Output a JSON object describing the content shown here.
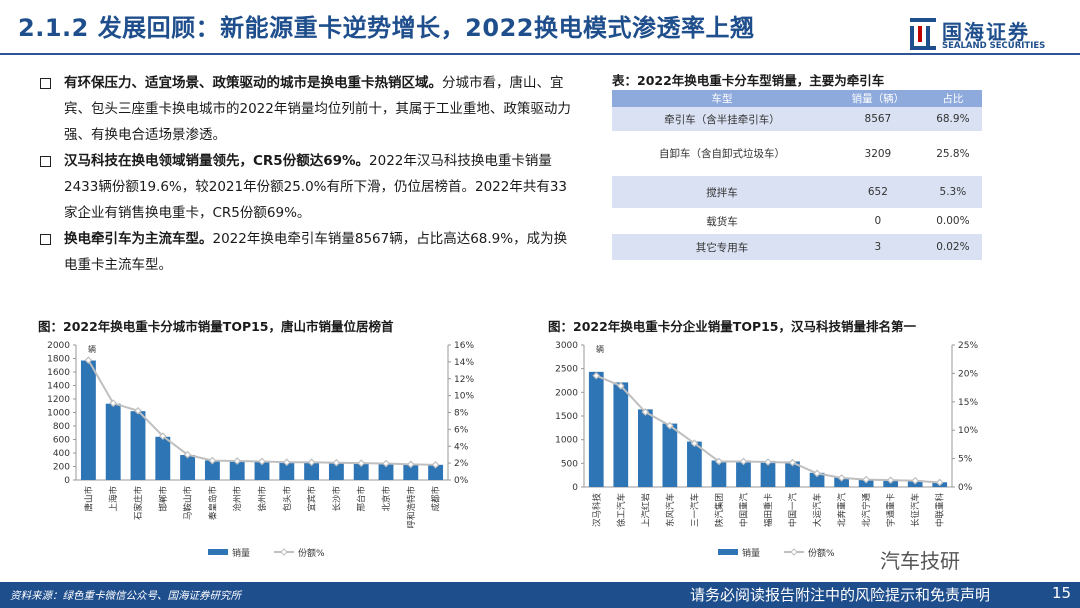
{
  "header": {
    "title": "2.1.2 发展回顾：新能源重卡逆势增长，2022换电模式渗透率上翘",
    "logo_cn": "国海证券",
    "logo_en": "SEALAND SECURITIES"
  },
  "bullets": [
    {
      "bold": "有环保压力、适宜场景、政策驱动的城市是换电重卡热销区域。",
      "text": "分城市看，唐山、宜宾、包头三座重卡换电城市的2022年销量均位列前十，其属于工业重地、政策驱动力强、有换电合适场景渗透。"
    },
    {
      "bold": "汉马科技在换电领域销量领先，CR5份额达69%。",
      "text": "2022年汉马科技换电重卡销量2433辆份额19.6%，较2021年份额25.0%有所下滑，仍位居榜首。2022年共有33家企业有销售换电重卡，CR5份额69%。"
    },
    {
      "bold": "换电牵引车为主流车型。",
      "text": "2022年换电牵引车销量8567辆，占比高达68.9%，成为换电重卡主流车型。"
    }
  ],
  "table": {
    "title": "表：2022年换电重卡分车型销量，主要为牵引车",
    "headers": [
      "车型",
      "销量（辆）",
      "占比"
    ],
    "rows": [
      [
        "牵引车（含半挂牵引车）",
        "8567",
        "68.9%"
      ],
      [
        "自卸车（含自卸式垃圾车）",
        "3209",
        "25.8%"
      ],
      [
        "搅拌车",
        "652",
        "5.3%"
      ],
      [
        "载货车",
        "0",
        "0.00%"
      ],
      [
        "其它专用车",
        "3",
        "0.02%"
      ]
    ]
  },
  "chart_data": [
    {
      "type": "bar",
      "title": "图：2022年换电重卡分城市销量TOP15，唐山市销量位居榜首",
      "unit_label": "辆",
      "categories": [
        "唐山市",
        "上海市",
        "石家庄市",
        "邯郸市",
        "马鞍山市",
        "秦皇岛市",
        "沧州市",
        "徐州市",
        "包头市",
        "宜宾市",
        "长沙市",
        "邢台市",
        "北京市",
        "呼和浩特市",
        "成都市"
      ],
      "series": [
        {
          "name": "销量",
          "kind": "bar",
          "axis": "left",
          "color": "#2e75b6",
          "values": [
            1770,
            1130,
            1020,
            640,
            370,
            290,
            280,
            270,
            265,
            260,
            255,
            250,
            240,
            230,
            225
          ]
        },
        {
          "name": "份额%",
          "kind": "line",
          "axis": "right",
          "color": "#bfbfbf",
          "values": [
            14.2,
            9.1,
            8.2,
            5.2,
            3.0,
            2.3,
            2.25,
            2.2,
            2.1,
            2.1,
            2.05,
            2.0,
            1.95,
            1.85,
            1.8
          ]
        }
      ],
      "ylim": [
        0,
        2000
      ],
      "yticks": [
        0,
        200,
        400,
        600,
        800,
        1000,
        1200,
        1400,
        1600,
        1800,
        2000
      ],
      "y2lim": [
        0,
        16
      ],
      "y2ticks": [
        "0%",
        "2%",
        "4%",
        "6%",
        "8%",
        "10%",
        "12%",
        "14%",
        "16%"
      ],
      "legend": "bottom-left"
    },
    {
      "type": "bar",
      "title": "图：2022年换电重卡分企业销量TOP15，汉马科技销量排名第一",
      "unit_label": "辆",
      "categories": [
        "汉马科技",
        "徐工汽车",
        "上汽红岩",
        "东风汽车",
        "三一汽车",
        "陕汽集团",
        "中国重汽",
        "福田重卡",
        "中国一汽",
        "大运汽车",
        "北奔重汽",
        "北汽宁通",
        "宇通重卡",
        "长征汽车",
        "中联重科"
      ],
      "series": [
        {
          "name": "销量",
          "kind": "bar",
          "axis": "left",
          "color": "#2e75b6",
          "values": [
            2433,
            2210,
            1640,
            1340,
            960,
            560,
            560,
            550,
            540,
            300,
            200,
            160,
            150,
            140,
            100
          ]
        },
        {
          "name": "份额%",
          "kind": "line",
          "axis": "right",
          "color": "#bfbfbf",
          "values": [
            19.6,
            17.8,
            13.2,
            10.8,
            7.7,
            4.5,
            4.5,
            4.4,
            4.3,
            2.4,
            1.6,
            1.3,
            1.2,
            1.1,
            0.8
          ]
        }
      ],
      "ylim": [
        0,
        3000
      ],
      "yticks": [
        0,
        500,
        1000,
        1500,
        2000,
        2500,
        3000
      ],
      "y2lim": [
        0,
        25
      ],
      "y2ticks": [
        "0%",
        "5%",
        "10%",
        "15%",
        "20%",
        "25%"
      ],
      "legend": "bottom-left"
    }
  ],
  "footer": {
    "source": "资料来源：绿色重卡微信公众号、国海证券研究所",
    "disclaimer": "请务必阅读报告附注中的风险提示和免责声明",
    "page": "15",
    "watermark": "汽车技研"
  }
}
